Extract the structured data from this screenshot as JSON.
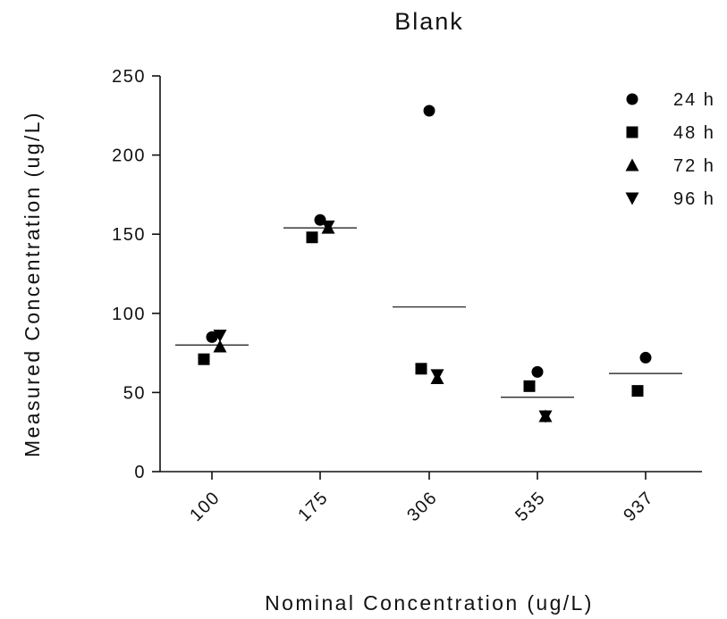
{
  "chart_data": {
    "type": "scatter",
    "title": "Blank",
    "xlabel": "Nominal Concentration (ug/L)",
    "ylabel": "Measured Concentration (ug/L)",
    "categories": [
      "100",
      "175",
      "306",
      "535",
      "937"
    ],
    "ylim": [
      0,
      250
    ],
    "yticks": [
      0,
      50,
      100,
      150,
      200,
      250
    ],
    "grid": false,
    "legend_position": "top-right",
    "marker_color": "#000000",
    "series": [
      {
        "name": "24 h",
        "marker": "circle",
        "values": [
          85,
          159,
          228,
          63,
          72
        ]
      },
      {
        "name": "48 h",
        "marker": "square",
        "values": [
          71,
          148,
          65,
          54,
          51
        ]
      },
      {
        "name": "72 h",
        "marker": "triangle-up",
        "values": [
          79,
          154,
          59,
          35,
          null
        ]
      },
      {
        "name": "96 h",
        "marker": "triangle-down",
        "values": [
          86,
          155,
          61,
          35,
          null
        ]
      }
    ],
    "means": [
      80,
      154,
      104,
      47,
      62
    ]
  }
}
